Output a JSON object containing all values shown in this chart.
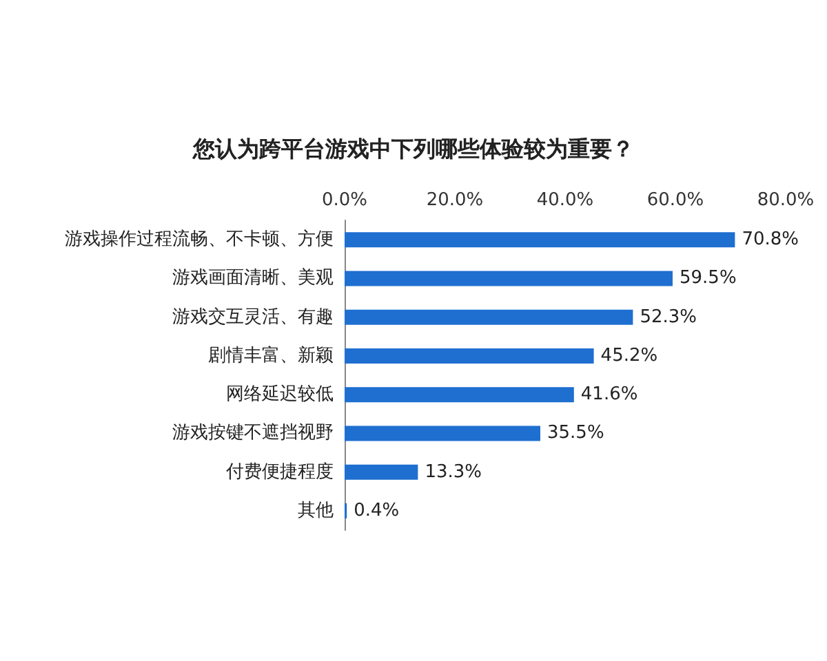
{
  "chart_data": {
    "type": "bar",
    "orientation": "horizontal",
    "title": "您认为跨平台游戏中下列哪些体验较为重要？",
    "categories": [
      "游戏操作过程流畅、不卡顿、方便",
      "游戏画面清晰、美观",
      "游戏交互灵活、有趣",
      "剧情丰富、新颖",
      "网络延迟较低",
      "游戏按键不遮挡视野",
      "付费便捷程度",
      "其他"
    ],
    "values": [
      70.8,
      59.5,
      52.3,
      45.2,
      41.6,
      35.5,
      13.3,
      0.4
    ],
    "value_labels": [
      "70.8%",
      "59.5%",
      "52.3%",
      "45.2%",
      "41.6%",
      "35.5%",
      "13.3%",
      "0.4%"
    ],
    "color": "#1f6fd1",
    "xlim": [
      0,
      80
    ],
    "xticks": [
      {
        "value": 0,
        "label": "0.0%"
      },
      {
        "value": 20,
        "label": "20.0%"
      },
      {
        "value": 40,
        "label": "40.0%"
      },
      {
        "value": 60,
        "label": "60.0%"
      },
      {
        "value": 80,
        "label": "80.0%"
      }
    ],
    "grid": false
  }
}
